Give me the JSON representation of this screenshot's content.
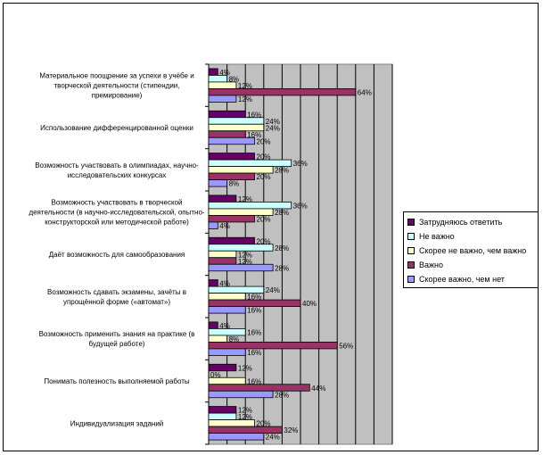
{
  "chart_data": {
    "type": "bar",
    "orientation": "horizontal",
    "categories": [
      "Материальное поощрение за успехи в учёбе и творческой деятельности (стипендии, премирование)",
      "Использование дифференцированной оценки",
      "Возможность участвовать в олимпиадах, научно-исследовательских конкурсах",
      "Возможность участвовать в творческой деятельности (в научно-исследовательской, опытно-конструкторской или методической работе)",
      "Даёт возможность для самообразования",
      "Возможность сдавать экзамены, зачёты в упрощённой форме («автомат»)",
      "Возможность применить знания на практике (в будущей работе)",
      "Понимать полезность выполняемой работы",
      "Индивидуализация заданий"
    ],
    "category_lines": [
      [
        "Материальное поощрение за успехи в учёбе и",
        "творческой деятельности (стипендии,",
        "премирование)"
      ],
      [
        "Использование дифференцированной оценки"
      ],
      [
        "Возможность участвовать в олимпиадах, научно-",
        "исследовательских конкурсах"
      ],
      [
        "Возможность участвовать в творческой",
        "деятельности (в научно-исследовательской, опытно-",
        "конструкторской или методической работе)"
      ],
      [
        "Даёт возможность для самообразования"
      ],
      [
        "Возможность сдавать экзамены, зачёты в",
        "упрощённой форме («автомат»)"
      ],
      [
        "Возможность применить знания на практике (в",
        "будущей работе)"
      ],
      [
        "Понимать полезность выполняемой работы"
      ],
      [
        "Индивидуализация заданий"
      ]
    ],
    "series": [
      {
        "name": "Затрудняюсь ответить",
        "color": "#660066",
        "values": [
          4,
          16,
          20,
          12,
          20,
          4,
          4,
          12,
          12
        ]
      },
      {
        "name": "Не важно",
        "color": "#ccffff",
        "values": [
          8,
          24,
          36,
          36,
          28,
          24,
          16,
          0,
          12
        ]
      },
      {
        "name": "Скорее не важно, чем важно",
        "color": "#ffffcc",
        "values": [
          12,
          24,
          28,
          28,
          12,
          16,
          8,
          16,
          20
        ]
      },
      {
        "name": "Важно",
        "color": "#993366",
        "values": [
          64,
          16,
          20,
          20,
          12,
          40,
          56,
          44,
          32
        ]
      },
      {
        "name": "Скорее важно, чем нет",
        "color": "#9999ff",
        "values": [
          12,
          20,
          8,
          4,
          28,
          16,
          16,
          28,
          24
        ]
      }
    ],
    "value_suffix": "%",
    "xlim": [
      0,
      80
    ],
    "grid_step": 8,
    "plot_area_color": "#c0c0c0",
    "legend_position": "right"
  }
}
